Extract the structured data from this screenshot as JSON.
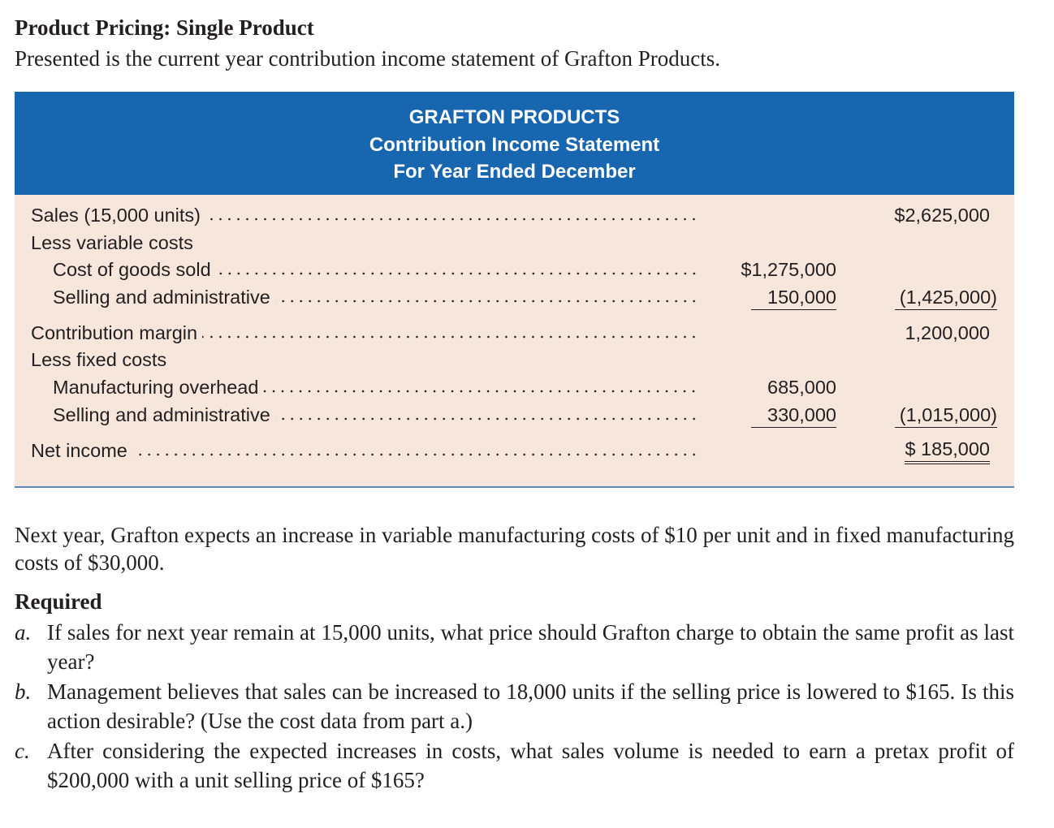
{
  "title": "Product Pricing: Single Product",
  "intro": "Presented is the current year contribution income statement of Grafton Products.",
  "statement": {
    "header": [
      "GRAFTON PRODUCTS",
      "Contribution Income Statement",
      "For Year Ended December"
    ],
    "rows": [
      {
        "label": "Sales (15,000 units)",
        "amount2": "$2,625,000"
      },
      {
        "label": "Less variable costs"
      },
      {
        "label": "Cost of goods sold",
        "amount1": "$1,275,000"
      },
      {
        "label": "Selling and administrative",
        "amount1": "150,000",
        "amount2": "(1,425,000)"
      },
      {
        "label": "Contribution margin",
        "amount2": "1,200,000"
      },
      {
        "label": "Less fixed costs"
      },
      {
        "label": "Manufacturing overhead",
        "amount1": "685,000"
      },
      {
        "label": "Selling and administrative",
        "amount1": "330,000",
        "amount2": "(1,015,000)"
      },
      {
        "label": "Net income",
        "amount2": "$ 185,000"
      }
    ]
  },
  "paragraph": "Next year, Grafton expects an increase in variable manufacturing costs of $10 per unit and in fixed manufacturing costs of $30,000.",
  "required": {
    "heading": "Required",
    "items": [
      {
        "letter": "a.",
        "text": "If sales for next year remain at 15,000 units, what price should Grafton charge to obtain the same profit as last year?"
      },
      {
        "letter": "b.",
        "text": "Management believes that sales can be increased to 18,000 units if the selling price is lowered to $165. Is this action desirable? (Use the cost data from part a.)"
      },
      {
        "letter": "c.",
        "text": "After considering the expected increases in costs, what sales volume is needed to earn a pretax profit of $200,000 with a unit selling price of $165?"
      }
    ]
  }
}
